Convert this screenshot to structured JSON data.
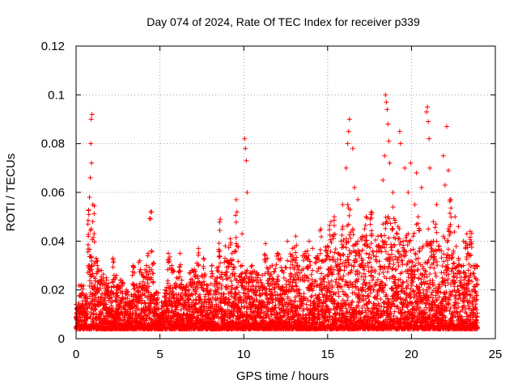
{
  "chart_data": {
    "type": "scatter",
    "title": "Day 074 of 2024, Rate Of TEC Index for receiver p339",
    "xlabel": "GPS time / hours",
    "ylabel": "ROTI / TECUs",
    "xlim": [
      0,
      25
    ],
    "ylim": [
      0,
      0.12
    ],
    "x_ticks": [
      "0",
      "5",
      "10",
      "15",
      "20",
      "25"
    ],
    "x_tick_values": [
      0,
      5,
      10,
      15,
      20,
      25
    ],
    "y_ticks": [
      "0",
      "0.02",
      "0.04",
      "0.06",
      "0.08",
      "0.1",
      "0.12"
    ],
    "y_tick_values": [
      0,
      0.02,
      0.04,
      0.06,
      0.08,
      0.1,
      0.12
    ],
    "grid": true,
    "marker": "plus",
    "series_color": "#ff0000",
    "series": [
      {
        "x": [
          0.0,
          0.3,
          0.6,
          0.9,
          1.2,
          1.5,
          1.8,
          2.1,
          2.4,
          2.7,
          3.0,
          3.3,
          3.6,
          3.9,
          4.2,
          4.5,
          4.8,
          5.1,
          5.4,
          5.7,
          6.0,
          6.3,
          6.6,
          6.9,
          7.2,
          7.5,
          7.8,
          8.1,
          8.4,
          8.7,
          9.0,
          9.3,
          9.6,
          9.9,
          10.2,
          10.5,
          10.8,
          11.1,
          11.4,
          11.7,
          12.0,
          12.3,
          12.6,
          12.9,
          13.2,
          13.5,
          13.8,
          14.1,
          14.4,
          14.7,
          15.0,
          15.3,
          15.6,
          15.9,
          16.2,
          16.5,
          16.8,
          17.1,
          17.4,
          17.7,
          18.0,
          18.3,
          18.6,
          18.9,
          19.2,
          19.5,
          19.8,
          20.1,
          20.4,
          20.7,
          21.0,
          21.3,
          21.6,
          21.9,
          22.2,
          22.5,
          22.8,
          23.1,
          23.4,
          23.7,
          0.85,
          0.9,
          0.95,
          1.0,
          0.8,
          0.88,
          0.92,
          4.45,
          4.5,
          4.3,
          9.55,
          9.6,
          9.9,
          10.05,
          10.1,
          10.15,
          10.2,
          8.6,
          16.2,
          16.3,
          16.25,
          16.5,
          15.9,
          16.1,
          16.6,
          17.2,
          17.3,
          18.45,
          18.5,
          18.55,
          18.6,
          18.4,
          18.65,
          18.7,
          18.3,
          18.9,
          19.3,
          19.35,
          19.6,
          19.95,
          20.3,
          20.6,
          20.9,
          20.95,
          21.0,
          21.05,
          21.1,
          21.5,
          21.9,
          22.0,
          22.1,
          22.2,
          22.3,
          22.6,
          23.3,
          23.5,
          23.8,
          5.5,
          6.2,
          7.3,
          7.6,
          8.9,
          9.2,
          11.3,
          12.6,
          13.1,
          13.9,
          14.6,
          15.2,
          15.4,
          16.8,
          17.6,
          19.8,
          20.2,
          21.3,
          22.8,
          23.1,
          2.2,
          3.4,
          3.8,
          6.9,
          12.2,
          14.1
        ],
        "y": [
          0.014,
          0.022,
          0.018,
          0.045,
          0.033,
          0.028,
          0.025,
          0.021,
          0.026,
          0.024,
          0.02,
          0.018,
          0.022,
          0.027,
          0.03,
          0.036,
          0.019,
          0.015,
          0.021,
          0.03,
          0.025,
          0.024,
          0.022,
          0.028,
          0.031,
          0.026,
          0.022,
          0.03,
          0.029,
          0.027,
          0.032,
          0.035,
          0.038,
          0.03,
          0.028,
          0.03,
          0.027,
          0.026,
          0.033,
          0.03,
          0.035,
          0.028,
          0.032,
          0.037,
          0.03,
          0.034,
          0.036,
          0.028,
          0.034,
          0.032,
          0.038,
          0.042,
          0.035,
          0.046,
          0.055,
          0.045,
          0.04,
          0.042,
          0.038,
          0.036,
          0.042,
          0.047,
          0.05,
          0.054,
          0.046,
          0.04,
          0.043,
          0.042,
          0.05,
          0.038,
          0.045,
          0.04,
          0.038,
          0.042,
          0.045,
          0.036,
          0.033,
          0.03,
          0.035,
          0.03,
          0.066,
          0.09,
          0.092,
          0.055,
          0.058,
          0.08,
          0.072,
          0.052,
          0.052,
          0.035,
          0.057,
          0.052,
          0.043,
          0.082,
          0.078,
          0.073,
          0.06,
          0.049,
          0.08,
          0.09,
          0.085,
          0.078,
          0.055,
          0.07,
          0.062,
          0.045,
          0.05,
          0.1,
          0.097,
          0.094,
          0.088,
          0.075,
          0.081,
          0.072,
          0.065,
          0.06,
          0.085,
          0.08,
          0.07,
          0.072,
          0.068,
          0.062,
          0.093,
          0.095,
          0.089,
          0.082,
          0.07,
          0.055,
          0.075,
          0.063,
          0.087,
          0.069,
          0.057,
          0.05,
          0.043,
          0.044,
          0.03,
          0.035,
          0.035,
          0.037,
          0.033,
          0.038,
          0.041,
          0.039,
          0.04,
          0.042,
          0.04,
          0.045,
          0.048,
          0.05,
          0.057,
          0.052,
          0.06,
          0.055,
          0.048,
          0.046,
          0.04,
          0.033,
          0.03,
          0.032,
          0.028,
          0.033,
          0.037
        ]
      }
    ]
  }
}
